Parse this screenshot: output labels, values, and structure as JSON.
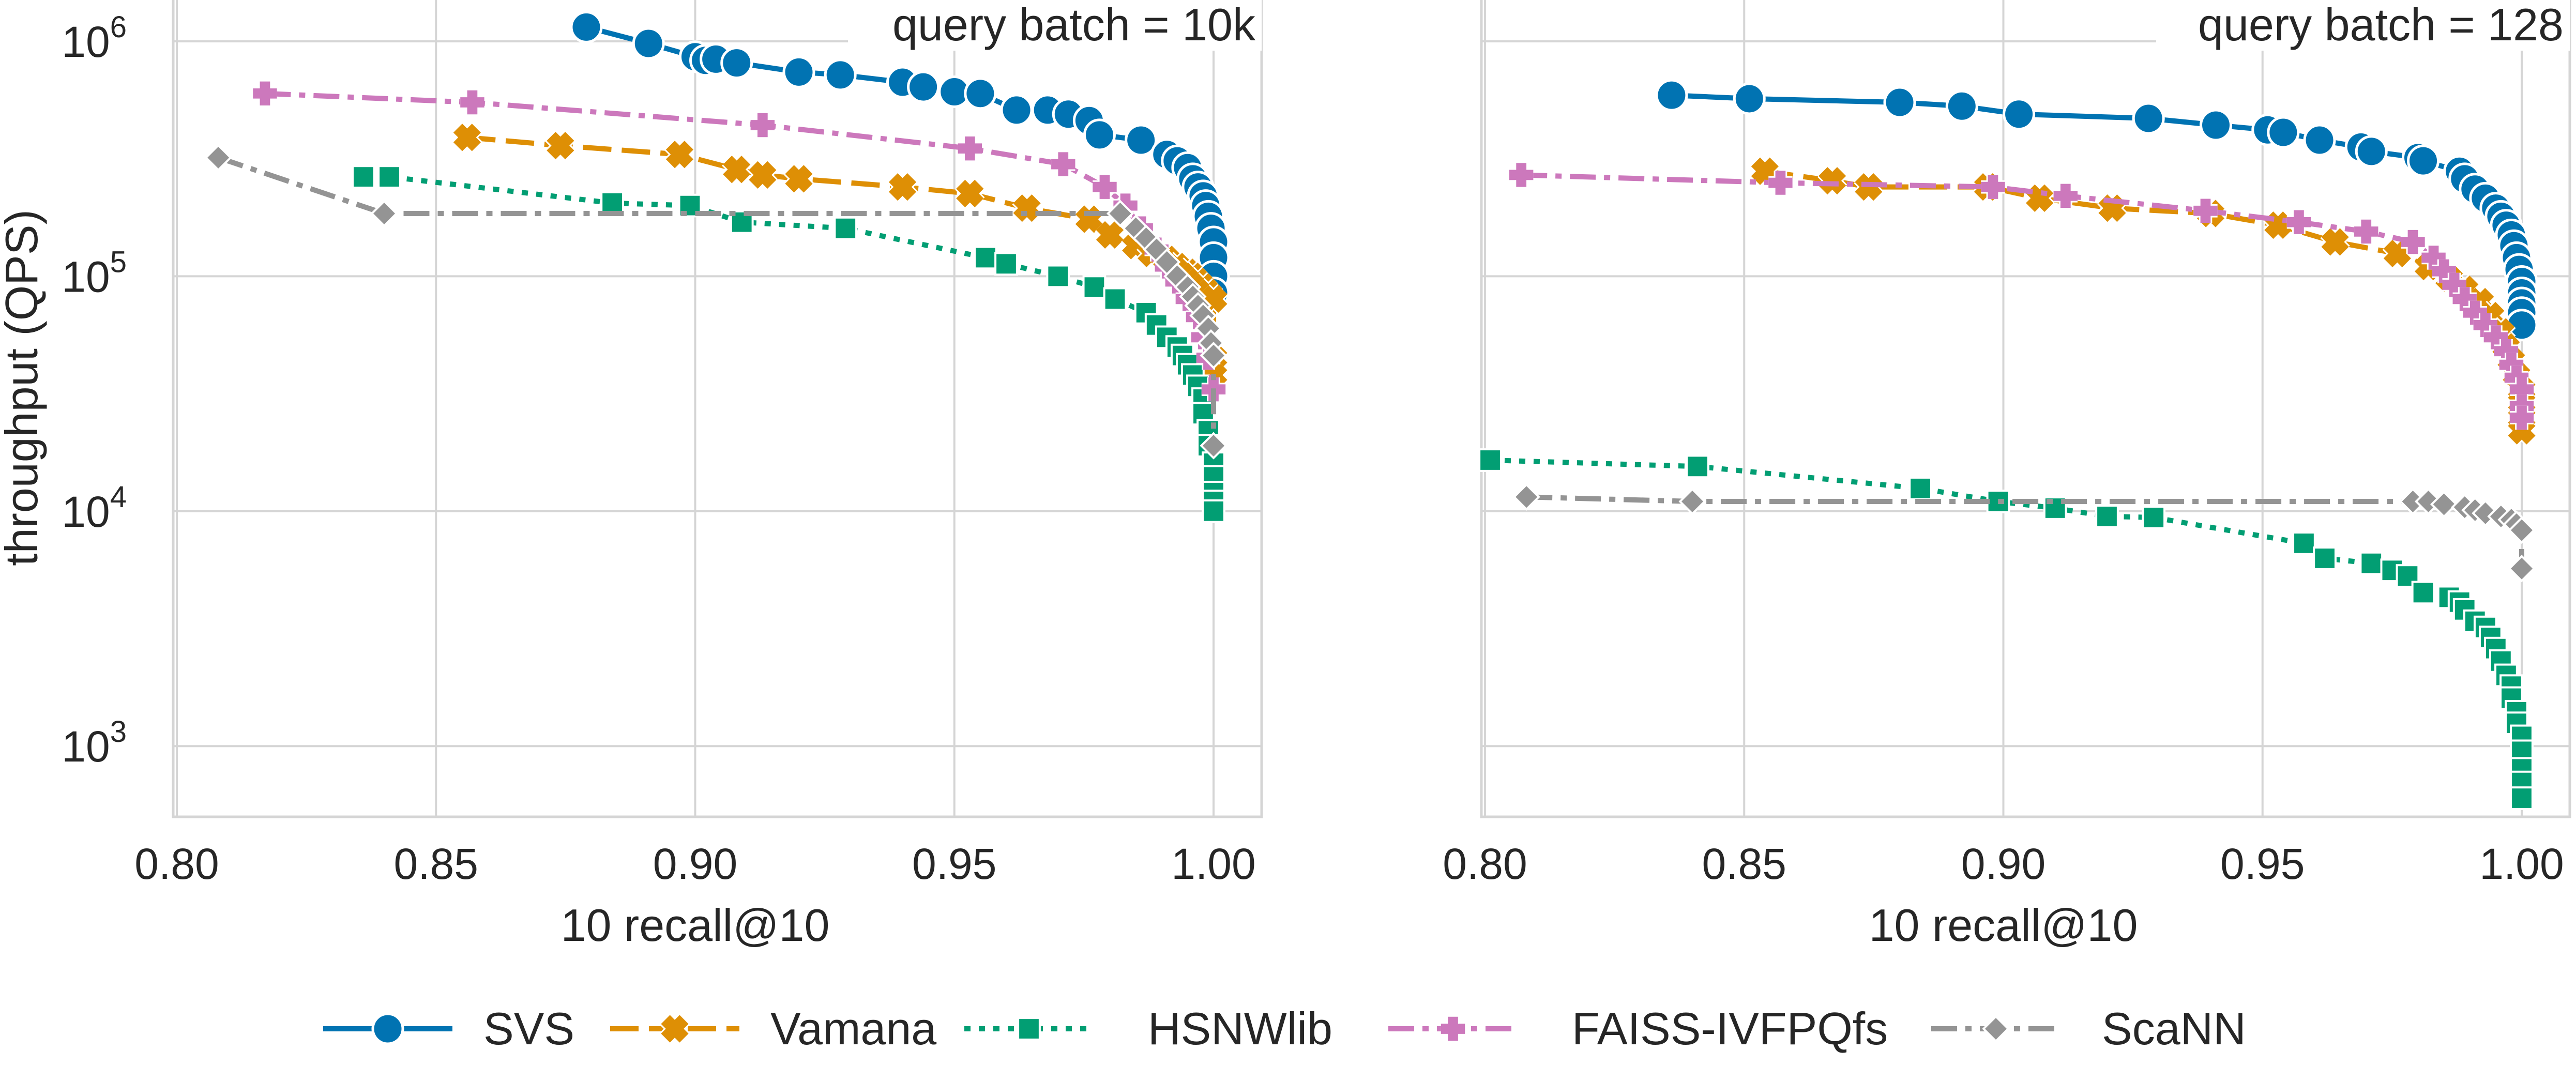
{
  "chart_data": [
    {
      "type": "line",
      "title": "query batch = 10k",
      "xlabel": "10 recall@10",
      "ylabel": "throughput (QPS)",
      "yscale": "log",
      "xlim": [
        0.8,
        1.0
      ],
      "ylim": [
        500,
        1500000
      ],
      "xticks": [
        "0.80",
        "0.85",
        "0.90",
        "0.95",
        "1.00"
      ],
      "yticks": [
        {
          "base": "10",
          "exp": "3"
        },
        {
          "base": "10",
          "exp": "4"
        },
        {
          "base": "10",
          "exp": "5"
        },
        {
          "base": "10",
          "exp": "6"
        }
      ],
      "grid": true,
      "series": [
        {
          "name": "SVS",
          "x": [
            0.879,
            0.891,
            0.9,
            0.902,
            0.904,
            0.908,
            0.92,
            0.928,
            0.94,
            0.944,
            0.95,
            0.955,
            0.962,
            0.968,
            0.972,
            0.976,
            0.978,
            0.986,
            0.991,
            0.993,
            0.995,
            0.996,
            0.997,
            0.998,
            0.9985,
            0.999,
            0.9995,
            1.0,
            1.0,
            1.0,
            1.0
          ],
          "y": [
            1150000,
            980000,
            860000,
            830000,
            840000,
            810000,
            740000,
            720000,
            670000,
            640000,
            610000,
            600000,
            510000,
            510000,
            490000,
            460000,
            400000,
            380000,
            330000,
            310000,
            290000,
            260000,
            240000,
            220000,
            200000,
            180000,
            160000,
            140000,
            120000,
            100000,
            85000
          ]
        },
        {
          "name": "Vamana",
          "x": [
            0.856,
            0.874,
            0.897,
            0.908,
            0.913,
            0.92,
            0.94,
            0.953,
            0.964,
            0.976,
            0.98,
            0.985,
            0.988,
            0.991,
            0.993,
            0.995,
            0.996,
            0.997,
            0.998,
            0.999,
            1.0,
            1.0,
            1.0
          ],
          "y": [
            390000,
            360000,
            330000,
            285000,
            270000,
            260000,
            240000,
            225000,
            195000,
            175000,
            150000,
            135000,
            125000,
            118000,
            110000,
            104000,
            100000,
            95000,
            90000,
            85000,
            80000,
            45000,
            38000
          ]
        },
        {
          "name": "HSNWlib",
          "x": [
            0.836,
            0.841,
            0.884,
            0.899,
            0.909,
            0.929,
            0.956,
            0.96,
            0.97,
            0.977,
            0.981,
            0.987,
            0.989,
            0.991,
            0.993,
            0.994,
            0.995,
            0.996,
            0.997,
            0.998,
            0.998,
            0.999,
            0.999,
            1.0,
            1.0,
            1.0,
            1.0,
            1.0
          ],
          "y": [
            265000,
            265000,
            205000,
            200000,
            170000,
            160000,
            120000,
            113000,
            100000,
            90000,
            80000,
            70000,
            62000,
            55000,
            50000,
            46000,
            42000,
            38000,
            34000,
            30000,
            26000,
            22000,
            19000,
            16000,
            14000,
            12000,
            11000,
            10000
          ]
        },
        {
          "name": "FAISS-IVFPQfs",
          "x": [
            0.817,
            0.857,
            0.913,
            0.953,
            0.971,
            0.979,
            0.983,
            0.986,
            0.989,
            0.991,
            0.993,
            0.995,
            0.997,
            0.998,
            0.999,
            1.0
          ],
          "y": [
            600000,
            550000,
            440000,
            350000,
            300000,
            240000,
            200000,
            160000,
            130000,
            110000,
            95000,
            80000,
            67000,
            55000,
            45000,
            33000
          ]
        },
        {
          "name": "ScaNN",
          "x": [
            0.808,
            0.84,
            0.982,
            0.985,
            0.987,
            0.989,
            0.991,
            0.993,
            0.995,
            0.996,
            0.997,
            0.998,
            0.999,
            0.9995,
            1.0,
            1.0
          ],
          "y": [
            320000,
            185000,
            185000,
            160000,
            145000,
            130000,
            115000,
            100000,
            90000,
            82000,
            75000,
            68000,
            60000,
            52000,
            46000,
            19000
          ]
        }
      ]
    },
    {
      "type": "line",
      "title": "query batch = 128",
      "xlabel": "10 recall@10",
      "ylabel": "",
      "yscale": "log",
      "xlim": [
        0.8,
        1.0
      ],
      "ylim": [
        500,
        1500000
      ],
      "xticks": [
        "0.80",
        "0.85",
        "0.90",
        "0.95",
        "1.00"
      ],
      "grid": true,
      "series": [
        {
          "name": "SVS",
          "x": [
            0.836,
            0.851,
            0.88,
            0.892,
            0.903,
            0.928,
            0.941,
            0.951,
            0.954,
            0.961,
            0.969,
            0.971,
            0.98,
            0.981,
            0.988,
            0.989,
            0.991,
            0.993,
            0.995,
            0.996,
            0.997,
            0.998,
            0.9985,
            0.999,
            0.9995,
            1.0,
            1.0,
            1.0,
            1.0,
            1.0
          ],
          "y": [
            590000,
            570000,
            550000,
            530000,
            490000,
            470000,
            440000,
            420000,
            410000,
            380000,
            355000,
            340000,
            320000,
            310000,
            280000,
            260000,
            235000,
            215000,
            195000,
            180000,
            165000,
            150000,
            135000,
            120000,
            107000,
            95000,
            85000,
            77000,
            70000,
            62000
          ]
        },
        {
          "name": "Vamana",
          "x": [
            0.854,
            0.867,
            0.874,
            0.897,
            0.907,
            0.921,
            0.94,
            0.953,
            0.964,
            0.976,
            0.982,
            0.986,
            0.989,
            0.992,
            0.994,
            0.996,
            0.997,
            0.998,
            0.999,
            1.0,
            1.0,
            1.0,
            1.0
          ],
          "y": [
            280000,
            255000,
            240000,
            240000,
            215000,
            195000,
            185000,
            165000,
            140000,
            125000,
            110000,
            98000,
            88000,
            78000,
            68000,
            58000,
            50000,
            44000,
            38000,
            33000,
            29000,
            25000,
            22000
          ]
        },
        {
          "name": "HSNWlib",
          "x": [
            0.801,
            0.841,
            0.884,
            0.899,
            0.91,
            0.92,
            0.929,
            0.958,
            0.962,
            0.971,
            0.975,
            0.978,
            0.981,
            0.986,
            0.988,
            0.989,
            0.991,
            0.993,
            0.994,
            0.995,
            0.996,
            0.997,
            0.998,
            0.998,
            0.999,
            0.999,
            1.0,
            1.0,
            1.0,
            1.0,
            1.0
          ],
          "y": [
            16500,
            15500,
            12500,
            11000,
            10300,
            9500,
            9400,
            7300,
            6300,
            6000,
            5600,
            5300,
            4500,
            4300,
            4100,
            3800,
            3400,
            3200,
            2900,
            2600,
            2300,
            2000,
            1800,
            1600,
            1400,
            1250,
            1100,
            950,
            800,
            700,
            600
          ]
        },
        {
          "name": "FAISS-IVFPQfs",
          "x": [
            0.807,
            0.857,
            0.898,
            0.912,
            0.939,
            0.957,
            0.97,
            0.979,
            0.983,
            0.985,
            0.987,
            0.989,
            0.991,
            0.993,
            0.995,
            0.997,
            0.998,
            0.999,
            1.0,
            1.0,
            1.0
          ],
          "y": [
            270000,
            250000,
            240000,
            220000,
            190000,
            170000,
            155000,
            140000,
            120000,
            105000,
            92000,
            80000,
            70000,
            62000,
            55000,
            48000,
            42000,
            37000,
            33000,
            28000,
            25000
          ]
        },
        {
          "name": "ScaNN",
          "x": [
            0.808,
            0.84,
            0.979,
            0.982,
            0.985,
            0.989,
            0.991,
            0.993,
            0.996,
            0.998,
            0.999,
            1.0,
            1.0
          ],
          "y": [
            11500,
            11000,
            11000,
            11000,
            10700,
            10400,
            10100,
            9800,
            9500,
            9200,
            8800,
            8300,
            5700
          ]
        }
      ]
    }
  ],
  "legend": {
    "placement": "bottom",
    "entries": [
      {
        "name": "SVS",
        "color": "#0173b2",
        "marker": "circle",
        "dash": "solid"
      },
      {
        "name": "Vamana",
        "color": "#de8f05",
        "marker": "x",
        "dash": "dashed"
      },
      {
        "name": "HSNWlib",
        "color": "#029e73",
        "marker": "square",
        "dash": "dotted"
      },
      {
        "name": "FAISS-IVFPQfs",
        "color": "#cc78bc",
        "marker": "plus",
        "dash": "dashdot"
      },
      {
        "name": "ScaNN",
        "color": "#949494",
        "marker": "diamond",
        "dash": "dashdot"
      }
    ]
  }
}
